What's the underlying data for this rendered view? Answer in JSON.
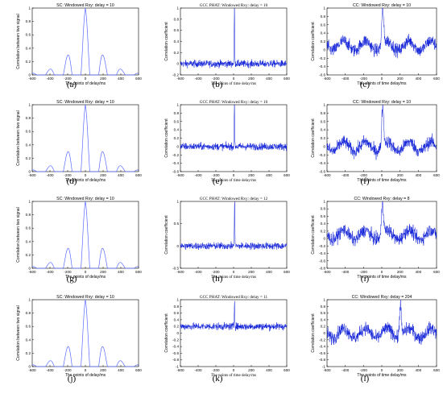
{
  "panel_labels": [
    "(a)",
    "(b)",
    "(c)",
    "(d)",
    "(e)",
    "(f)",
    "(g)",
    "(h)",
    "(i)",
    "(j)",
    "(k)",
    "(l)"
  ],
  "chart_data": [
    {
      "id": "a",
      "type": "line",
      "kind": "sc",
      "title": "SC: Windowed Rxy: delay = 10",
      "xlabel": "The points of delay/ms",
      "ylabel": "Correlation between two signal",
      "xlim": [
        -600,
        600
      ],
      "ylim": [
        0,
        1
      ],
      "xticks": [
        -600,
        -400,
        -200,
        0,
        200,
        400,
        600
      ],
      "yticks": [
        0,
        0.2,
        0.4,
        0.6,
        0.8,
        1
      ],
      "series": [
        {
          "x": [
            -240,
            -140,
            -40,
            0,
            40,
            140,
            240
          ],
          "y": [
            0.22,
            0.42,
            0.7,
            1.0,
            0.7,
            0.42,
            0.22
          ]
        }
      ]
    },
    {
      "id": "b",
      "type": "line",
      "kind": "gcc",
      "title": "GCC PHAT: Windowed Rxy: delay = 10",
      "xlabel": "The points of time delay/ms",
      "ylabel": "Correlation coefficient",
      "xlim": [
        -600,
        600
      ],
      "ylim": [
        -0.2,
        1
      ],
      "xticks": [
        -600,
        -400,
        -200,
        0,
        200,
        400,
        600
      ],
      "yticks": [
        -0.2,
        0,
        0.2,
        0.4,
        0.6,
        0.8,
        1
      ],
      "series": [
        {
          "x": [
            0,
            10,
            600
          ],
          "y": [
            0.0,
            1.0,
            0.0
          ]
        }
      ]
    },
    {
      "id": "c",
      "type": "line",
      "kind": "cc",
      "title": "CC: Windowed Rxy: delay = 10",
      "xlabel": "The points of time delay/ms",
      "ylabel": "Correlation coefficient",
      "xlim": [
        -600,
        600
      ],
      "ylim": [
        -0.6,
        1
      ],
      "xticks": [
        -600,
        -400,
        -200,
        0,
        200,
        400,
        600
      ],
      "yticks": [
        -0.6,
        -0.4,
        -0.2,
        0,
        0.2,
        0.4,
        0.6,
        0.8,
        1
      ],
      "series": [
        {
          "x": [
            0,
            10,
            600
          ],
          "y": [
            0.1,
            1.0,
            0.1
          ]
        }
      ]
    },
    {
      "id": "d",
      "type": "line",
      "kind": "sc",
      "title": "SC: Windowed Rxy: delay = 10",
      "xlabel": "The points of delay/ms",
      "ylabel": "Correlation between two signal",
      "xlim": [
        -600,
        600
      ],
      "ylim": [
        0,
        1
      ],
      "xticks": [
        -600,
        -400,
        -200,
        0,
        200,
        400,
        600
      ],
      "yticks": [
        0,
        0.2,
        0.4,
        0.6,
        0.8,
        1
      ],
      "series": [
        {
          "x": [
            -240,
            -140,
            -40,
            0,
            40,
            140,
            240
          ],
          "y": [
            0.22,
            0.42,
            0.7,
            1.0,
            0.7,
            0.42,
            0.22
          ]
        }
      ]
    },
    {
      "id": "e",
      "type": "line",
      "kind": "gcc",
      "title": "GCC PHAT: Windowed Rxy: delay = 10",
      "xlabel": "The points of time delay/ms",
      "ylabel": "Correlation coefficient",
      "xlim": [
        -600,
        600
      ],
      "ylim": [
        -0.6,
        1
      ],
      "xticks": [
        -600,
        -400,
        -200,
        0,
        200,
        400,
        600
      ],
      "yticks": [
        -0.6,
        -0.4,
        -0.2,
        0,
        0.2,
        0.4,
        0.6,
        0.8,
        1
      ],
      "series": [
        {
          "x": [
            0,
            10,
            600
          ],
          "y": [
            0.0,
            1.0,
            0.0
          ]
        }
      ]
    },
    {
      "id": "f",
      "type": "line",
      "kind": "cc",
      "title": "CC: Windowed Rxy: delay = 10",
      "xlabel": "The points of time delay/ms",
      "ylabel": "Correlation coefficient",
      "xlim": [
        -600,
        600
      ],
      "ylim": [
        -0.6,
        1
      ],
      "xticks": [
        -600,
        -400,
        -200,
        0,
        200,
        400,
        600
      ],
      "yticks": [
        -0.6,
        -0.4,
        -0.2,
        0,
        0.2,
        0.4,
        0.6,
        0.8,
        1
      ],
      "series": [
        {
          "x": [
            0,
            10,
            600
          ],
          "y": [
            0.0,
            1.0,
            0.0
          ]
        }
      ]
    },
    {
      "id": "g",
      "type": "line",
      "kind": "sc",
      "title": "SC: Windowed Rxy: delay = 10",
      "xlabel": "The points of delay/ms",
      "ylabel": "Correlation between two signal",
      "xlim": [
        -600,
        600
      ],
      "ylim": [
        0,
        1
      ],
      "xticks": [
        -600,
        -400,
        -200,
        0,
        200,
        400,
        600
      ],
      "yticks": [
        0,
        0.2,
        0.4,
        0.6,
        0.8,
        1
      ],
      "series": [
        {
          "x": [
            -240,
            -140,
            -40,
            0,
            40,
            140,
            240
          ],
          "y": [
            0.22,
            0.42,
            0.7,
            1.0,
            0.7,
            0.42,
            0.22
          ]
        }
      ]
    },
    {
      "id": "h",
      "type": "line",
      "kind": "gcc",
      "title": "GCC PHAT: Windowed Rxy: delay = 12",
      "xlabel": "The points of time delay/ms",
      "ylabel": "Correlation coefficient",
      "xlim": [
        -600,
        600
      ],
      "ylim": [
        -0.5,
        1
      ],
      "xticks": [
        -600,
        -400,
        -200,
        0,
        200,
        400,
        600
      ],
      "yticks": [
        -0.5,
        0,
        0.5,
        1
      ],
      "series": [
        {
          "x": [
            0,
            12,
            600
          ],
          "y": [
            0.0,
            1.0,
            0.0
          ]
        }
      ]
    },
    {
      "id": "i",
      "type": "line",
      "kind": "cc",
      "title": "CC: Windowed Rxy: delay = 8",
      "xlabel": "The points of time delay/ms",
      "ylabel": "Correlation coefficient",
      "xlim": [
        -600,
        600
      ],
      "ylim": [
        -0.8,
        1
      ],
      "xticks": [
        -600,
        -400,
        -200,
        0,
        200,
        400,
        600
      ],
      "yticks": [
        -0.8,
        -0.6,
        -0.4,
        -0.2,
        0,
        0.2,
        0.4,
        0.6,
        0.8,
        1
      ],
      "series": [
        {
          "x": [
            0,
            8,
            600
          ],
          "y": [
            0.1,
            1.0,
            0.1
          ]
        }
      ]
    },
    {
      "id": "j",
      "type": "line",
      "kind": "sc",
      "title": "SC: Windowed Rxy: delay = 10",
      "xlabel": "The points of delay/ms",
      "ylabel": "Correlation between two signal",
      "xlim": [
        -600,
        600
      ],
      "ylim": [
        0,
        1
      ],
      "xticks": [
        -600,
        -400,
        -200,
        0,
        200,
        400,
        600
      ],
      "yticks": [
        0,
        0.2,
        0.4,
        0.6,
        0.8,
        1
      ],
      "series": [
        {
          "x": [
            -240,
            -140,
            -40,
            0,
            40,
            140,
            240
          ],
          "y": [
            0.22,
            0.42,
            0.7,
            1.0,
            0.7,
            0.42,
            0.22
          ]
        }
      ]
    },
    {
      "id": "k",
      "type": "line",
      "kind": "gcc",
      "title": "GCC PHAT: Windowed Rxy: delay = 11",
      "xlabel": "The points of time delay/ms",
      "ylabel": "Correlation coefficient",
      "xlim": [
        -600,
        600
      ],
      "ylim": [
        -1,
        1
      ],
      "xticks": [
        -600,
        -400,
        -200,
        0,
        200,
        400,
        600
      ],
      "yticks": [
        -1,
        -0.8,
        -0.6,
        -0.4,
        -0.2,
        0,
        0.2,
        0.4,
        0.6,
        0.8,
        1
      ],
      "series": [
        {
          "x": [
            0,
            11,
            600
          ],
          "y": [
            0.2,
            1.0,
            0.2
          ]
        }
      ]
    },
    {
      "id": "l",
      "type": "line",
      "kind": "cc",
      "title": "CC: Windowed Rxy: delay = 204",
      "xlabel": "The points of time delay/ms",
      "ylabel": "Correlation coefficient",
      "xlim": [
        -600,
        600
      ],
      "ylim": [
        -1,
        1
      ],
      "xticks": [
        -600,
        -400,
        -200,
        0,
        200,
        400,
        600
      ],
      "yticks": [
        -1,
        -0.8,
        -0.6,
        -0.4,
        -0.2,
        0,
        0.2,
        0.4,
        0.6,
        0.8,
        1
      ],
      "series": [
        {
          "x": [
            0,
            204,
            600
          ],
          "y": [
            0.0,
            1.0,
            0.0
          ]
        }
      ]
    }
  ]
}
